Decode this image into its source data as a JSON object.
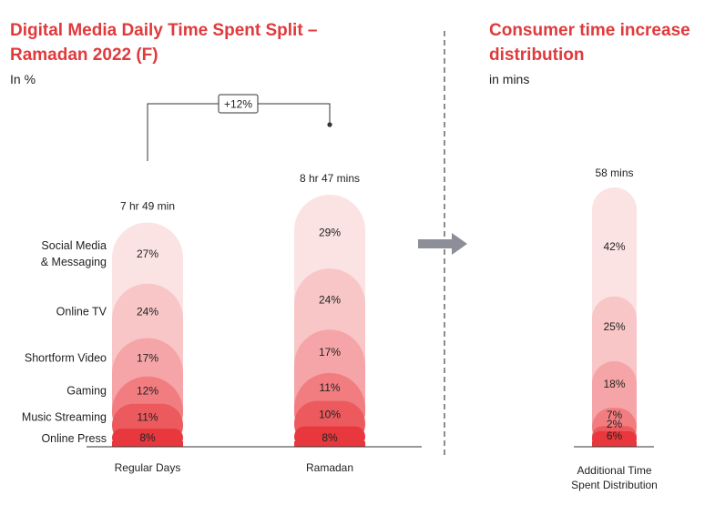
{
  "left_panel": {
    "title_line1": "Digital Media Daily Time Spent Split –",
    "title_line2": "Ramadan 2022 (F)",
    "subtitle": "In %"
  },
  "right_panel": {
    "title_line1": "Consumer time increase",
    "title_line2": "distribution",
    "subtitle": "in mins"
  },
  "colors": {
    "title_red": "#e03a3c",
    "segment_colors": [
      "#e8383d",
      "#ec5a5e",
      "#f17d80",
      "#f5a5a7",
      "#f8c6c7",
      "#fbe3e3"
    ]
  },
  "chart_data": [
    {
      "type": "stacked-bar",
      "title": "Digital Media Daily Time Spent Split – Ramadan 2022 (F)",
      "unit": "%",
      "segments": [
        "Online Press",
        "Music Streaming",
        "Gaming",
        "Shortform Video",
        "Online TV",
        "Social Media & Messaging"
      ],
      "segment_labels": [
        "Online Press",
        "Music Streaming",
        "Gaming",
        "Shortform Video",
        "Online TV",
        "Social Media\n& Messaging"
      ],
      "bars": [
        {
          "category": "Regular Days",
          "total_label": "7 hr 49 min",
          "values": [
            8,
            11,
            12,
            17,
            24,
            27
          ]
        },
        {
          "category": "Ramadan",
          "total_label": "8 hr 47 mins",
          "values": [
            8,
            10,
            11,
            17,
            24,
            29
          ]
        }
      ],
      "increase_label": "+12%"
    },
    {
      "type": "stacked-bar",
      "title": "Consumer time increase distribution",
      "unit": "%",
      "bars": [
        {
          "category": "Additional Time\nSpent Distribution",
          "total_label": "58 mins",
          "values": [
            6,
            2,
            7,
            18,
            25,
            42
          ]
        }
      ]
    }
  ]
}
